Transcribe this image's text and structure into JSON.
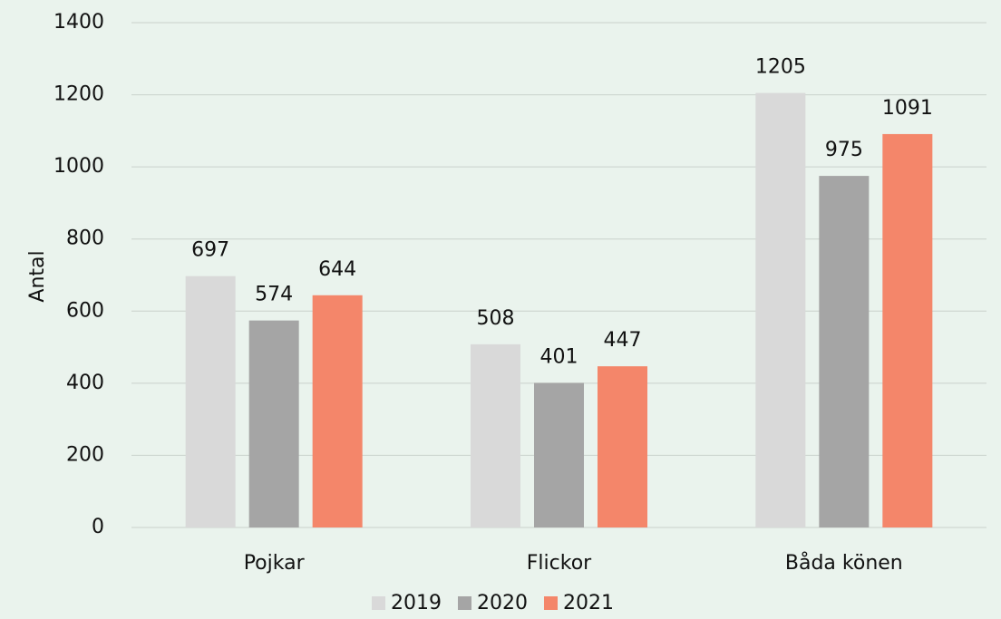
{
  "chart_data": {
    "type": "bar",
    "categories": [
      "Pojkar",
      "Flickor",
      "Båda könen"
    ],
    "series": [
      {
        "name": "2019",
        "color": "#d9d9d9",
        "values": [
          697,
          508,
          1205
        ]
      },
      {
        "name": "2020",
        "color": "#a5a5a5",
        "values": [
          574,
          401,
          975
        ]
      },
      {
        "name": "2021",
        "color": "#f4866a",
        "values": [
          644,
          447,
          1091
        ]
      }
    ],
    "ylabel": "Antal",
    "ylim": [
      0,
      1400
    ],
    "yticks": [
      0,
      200,
      400,
      600,
      800,
      1000,
      1200,
      1400
    ],
    "grid": true,
    "legend": "bottom",
    "data_labels": true
  }
}
